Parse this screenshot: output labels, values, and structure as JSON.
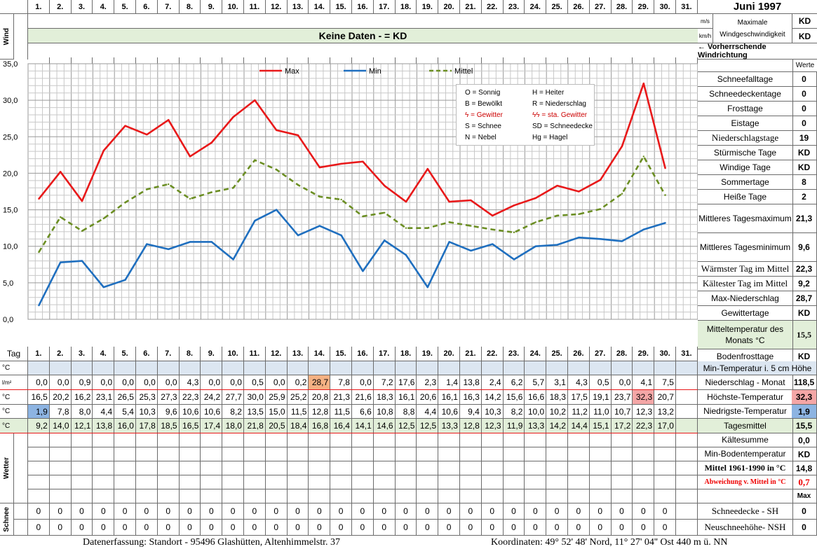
{
  "month_title": "Juni 1997",
  "day_labels": [
    "1.",
    "2.",
    "3.",
    "4.",
    "5.",
    "6.",
    "7.",
    "8.",
    "9.",
    "10.",
    "11.",
    "12.",
    "13.",
    "14.",
    "15.",
    "16.",
    "17.",
    "18.",
    "19.",
    "20.",
    "21.",
    "22.",
    "23.",
    "24.",
    "25.",
    "26.",
    "27.",
    "28.",
    "29.",
    "30.",
    "31."
  ],
  "wind": {
    "side_label": "Wind",
    "banner": "Keine Daten -  = KD",
    "unit_ms": "m/s",
    "unit_kmh": "km/h",
    "max_label_1": "Maximale",
    "max_label_2": "Windgeschwindigkeit",
    "max_ms_value": "KD",
    "max_kmh_value": "KD",
    "direction_label": "← Vorherrschende Windrichtung"
  },
  "right_panel": {
    "werte_header": "Werte",
    "rows": [
      {
        "label": "Schneefalltage",
        "value": "0"
      },
      {
        "label": "Schneedeckentage",
        "value": "0"
      },
      {
        "label": "Frosttage",
        "value": "0"
      },
      {
        "label": "Eistage",
        "value": "0"
      },
      {
        "label": "Niederschlagstage",
        "value": "19"
      },
      {
        "label": "Stürmische Tage",
        "value": "KD"
      },
      {
        "label": "Windige Tage",
        "value": "KD"
      },
      {
        "label": "Sommertage",
        "value": "8"
      },
      {
        "label": "Heiße Tage",
        "value": "2"
      },
      {
        "label": "Mittleres Tagesmaximum",
        "value": "21,3"
      },
      {
        "label": "Mittleres Tagesminimum",
        "value": "9,6"
      },
      {
        "label": "Wärmster Tag im Mittel",
        "value": "22,3"
      },
      {
        "label": "Kältester Tag im Mittel",
        "value": "9,2"
      },
      {
        "label": "Max-Niederschlag",
        "value": "28,7"
      },
      {
        "label": "Gewittertage",
        "value": "KD"
      },
      {
        "label": "Mitteltemperatur des Monats °C",
        "value": "15,5"
      },
      {
        "label": "Bodenfrosttage",
        "value": "KD"
      }
    ],
    "lower_rows": [
      {
        "label": "Min-Temperatur i. 5 cm Höhe",
        "value": ""
      },
      {
        "label": "Niederschlag - Monat",
        "value": "118,5"
      },
      {
        "label": "Höchste-Temperatur",
        "value": "32,3"
      },
      {
        "label": "Niedrigste-Temperatur",
        "value": "1,9"
      },
      {
        "label": "Tagesmittel",
        "value": "15,5"
      },
      {
        "label": "Kältesumme",
        "value": "0,0"
      },
      {
        "label": "Min-Bodentemperatur",
        "value": "KD"
      },
      {
        "label": "Mittel 1961-1990 in °C",
        "value": "14,8"
      },
      {
        "label": "Abweichung v. Mittel in °C",
        "value": "0,7"
      },
      {
        "label": "",
        "value": "Max"
      },
      {
        "label": "Schneedecke -   SH",
        "value": "0"
      },
      {
        "label": "Neuschneehöhe- NSH",
        "value": "0"
      }
    ]
  },
  "legend": {
    "max": "Max",
    "min": "Min",
    "mittel": "Mittel",
    "colors": {
      "max": "#e8191a",
      "min": "#1f6fbf",
      "mittel": "#6b8e23"
    }
  },
  "symbol_legend": [
    [
      "O = Sonnig",
      "H = Heiter"
    ],
    [
      "B = Bewölkt",
      "R = Niederschlag"
    ],
    [
      "ϟ = Gewitter",
      "ϟϟ = sta. Gewitter"
    ],
    [
      "S = Schnee",
      "SD = Schneedecke"
    ],
    [
      "N = Nebel",
      "Hg = Hagel"
    ]
  ],
  "chart_data": {
    "type": "line",
    "x": [
      1,
      2,
      3,
      4,
      5,
      6,
      7,
      8,
      9,
      10,
      11,
      12,
      13,
      14,
      15,
      16,
      17,
      18,
      19,
      20,
      21,
      22,
      23,
      24,
      25,
      26,
      27,
      28,
      29,
      30
    ],
    "ylim": [
      0,
      35
    ],
    "yticks": [
      "0,0",
      "5,0",
      "10,0",
      "15,0",
      "20,0",
      "25,0",
      "30,0",
      "35,0"
    ],
    "grid": true,
    "legend_position": "top",
    "series": [
      {
        "name": "Max",
        "color": "#e8191a",
        "values": [
          16.5,
          20.2,
          16.2,
          23.1,
          26.5,
          25.3,
          27.3,
          22.3,
          24.2,
          27.7,
          30.0,
          25.9,
          25.2,
          20.8,
          21.3,
          21.6,
          18.3,
          16.1,
          20.6,
          16.1,
          16.3,
          14.2,
          15.6,
          16.6,
          18.3,
          17.5,
          19.1,
          23.7,
          32.3,
          20.7
        ]
      },
      {
        "name": "Min",
        "color": "#1f6fbf",
        "values": [
          1.9,
          7.8,
          8.0,
          4.4,
          5.4,
          10.3,
          9.6,
          10.6,
          10.6,
          8.2,
          13.5,
          15.0,
          11.5,
          12.8,
          11.5,
          6.6,
          10.8,
          8.8,
          4.4,
          10.6,
          9.4,
          10.3,
          8.2,
          10.0,
          10.2,
          11.2,
          11.0,
          10.7,
          12.3,
          13.2
        ]
      },
      {
        "name": "Mittel",
        "color": "#6b8e23",
        "values": [
          9.2,
          14.0,
          12.1,
          13.8,
          16.0,
          17.8,
          18.5,
          16.5,
          17.4,
          18.0,
          21.8,
          20.5,
          18.4,
          16.8,
          16.4,
          14.1,
          14.6,
          12.5,
          12.5,
          13.3,
          12.8,
          12.3,
          11.9,
          13.3,
          14.2,
          14.4,
          15.1,
          17.2,
          22.3,
          17.0
        ]
      }
    ]
  },
  "table": {
    "tag_label": "Tag",
    "unit_min5": "°C",
    "unit_precip": "l/m²",
    "unit_max": "°C",
    "unit_min": "°C",
    "unit_mean": "°C",
    "precip": [
      "0,0",
      "0,0",
      "0,9",
      "0,0",
      "0,0",
      "0,0",
      "0,0",
      "4,3",
      "0,0",
      "0,0",
      "0,5",
      "0,0",
      "0,2",
      "28,7",
      "7,8",
      "0,0",
      "7,2",
      "17,6",
      "2,3",
      "1,4",
      "13,8",
      "2,4",
      "6,2",
      "5,7",
      "3,1",
      "4,3",
      "0,5",
      "0,0",
      "4,1",
      "7,5",
      ""
    ],
    "tmax": [
      "16,5",
      "20,2",
      "16,2",
      "23,1",
      "26,5",
      "25,3",
      "27,3",
      "22,3",
      "24,2",
      "27,7",
      "30,0",
      "25,9",
      "25,2",
      "20,8",
      "21,3",
      "21,6",
      "18,3",
      "16,1",
      "20,6",
      "16,1",
      "16,3",
      "14,2",
      "15,6",
      "16,6",
      "18,3",
      "17,5",
      "19,1",
      "23,7",
      "32,3",
      "20,7",
      ""
    ],
    "tmin": [
      "1,9",
      "7,8",
      "8,0",
      "4,4",
      "5,4",
      "10,3",
      "9,6",
      "10,6",
      "10,6",
      "8,2",
      "13,5",
      "15,0",
      "11,5",
      "12,8",
      "11,5",
      "6,6",
      "10,8",
      "8,8",
      "4,4",
      "10,6",
      "9,4",
      "10,3",
      "8,2",
      "10,0",
      "10,2",
      "11,2",
      "11,0",
      "10,7",
      "12,3",
      "13,2",
      ""
    ],
    "tmean": [
      "9,2",
      "14,0",
      "12,1",
      "13,8",
      "16,0",
      "17,8",
      "18,5",
      "16,5",
      "17,4",
      "18,0",
      "21,8",
      "20,5",
      "18,4",
      "16,8",
      "16,4",
      "14,1",
      "14,6",
      "12,5",
      "12,5",
      "13,3",
      "12,8",
      "12,3",
      "11,9",
      "13,3",
      "14,2",
      "14,4",
      "15,1",
      "17,2",
      "22,3",
      "17,0",
      ""
    ],
    "wetter_label": "Wetter",
    "schnee_label": "Schnee",
    "snow_sh": [
      "0",
      "0",
      "0",
      "0",
      "0",
      "0",
      "0",
      "0",
      "0",
      "0",
      "0",
      "0",
      "0",
      "0",
      "0",
      "0",
      "0",
      "0",
      "0",
      "0",
      "0",
      "0",
      "0",
      "0",
      "0",
      "0",
      "0",
      "0",
      "0",
      "0",
      ""
    ],
    "snow_nsh": [
      "0",
      "0",
      "0",
      "0",
      "0",
      "0",
      "0",
      "0",
      "0",
      "0",
      "0",
      "0",
      "0",
      "0",
      "0",
      "0",
      "0",
      "0",
      "0",
      "0",
      "0",
      "0",
      "0",
      "0",
      "0",
      "0",
      "0",
      "0",
      "0",
      "0",
      ""
    ]
  },
  "footer": {
    "left": "Datenerfassung:  Standort -   95496  Glashütten, Altenhimmelstr. 37",
    "right": "Koordinaten:  49° 52' 48' Nord,  11° 27' 04'' Ost   440 m ü. NN"
  }
}
